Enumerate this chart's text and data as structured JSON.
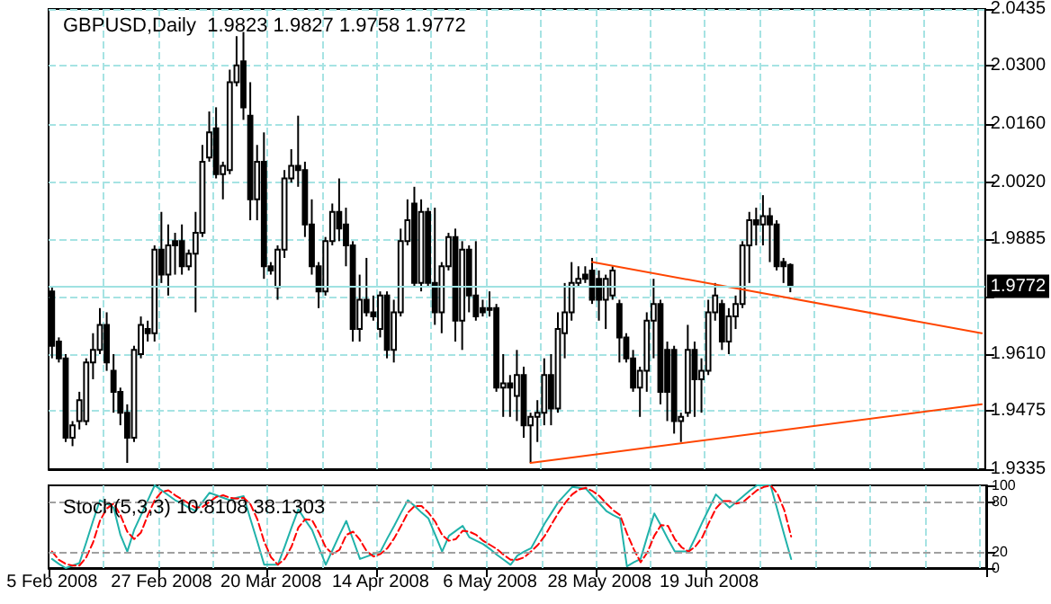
{
  "chart_data": [
    {
      "type": "candlestick",
      "title": "GBPUSD,Daily  1.9823 1.9827 1.9758 1.9772",
      "categories": [
        null,
        null,
        null,
        null,
        null,
        null,
        null,
        null,
        null,
        null,
        null,
        null,
        null,
        null,
        null,
        null,
        null,
        null,
        null,
        null,
        null,
        null,
        null,
        null,
        null,
        null,
        null,
        null,
        null,
        null,
        null,
        null,
        null,
        null,
        null,
        null,
        null,
        null,
        null,
        null,
        null,
        null,
        null,
        null,
        null,
        null,
        null,
        null,
        null,
        null,
        null,
        null,
        null,
        null,
        null,
        null,
        null,
        null,
        null,
        null,
        null,
        null,
        null,
        null,
        null,
        null,
        null,
        null,
        null,
        null,
        null,
        null,
        null,
        null,
        null,
        null,
        null,
        null,
        null,
        null,
        null,
        null,
        null,
        null,
        null,
        null,
        null,
        null,
        null,
        null,
        null,
        null,
        null,
        null,
        null,
        null,
        null,
        null,
        null,
        null,
        null,
        null,
        null,
        null,
        null,
        null,
        null,
        null,
        null,
        null,
        null,
        null,
        null,
        null,
        null,
        null,
        null,
        null,
        null,
        null,
        null,
        null,
        null,
        null,
        null,
        null,
        null,
        null,
        null,
        null,
        null,
        null,
        null,
        null,
        null,
        null,
        null
      ],
      "series": [
        {
          "color": "#000000",
          "ohlc": [
            [
              1.976,
              1.977,
              1.96,
              1.963
            ],
            [
              1.964,
              1.965,
              1.959,
              1.96
            ],
            [
              1.96,
              1.961,
              1.94,
              1.941
            ],
            [
              1.941,
              1.945,
              1.939,
              1.944
            ],
            [
              1.945,
              1.952,
              1.943,
              1.95
            ],
            [
              1.945,
              1.96,
              1.944,
              1.959
            ],
            [
              1.959,
              1.966,
              1.955,
              1.962
            ],
            [
              1.962,
              1.972,
              1.961,
              1.968
            ],
            [
              1.968,
              1.971,
              1.957,
              1.959
            ],
            [
              1.957,
              1.961,
              1.947,
              1.952
            ],
            [
              1.952,
              1.953,
              1.944,
              1.947
            ],
            [
              1.947,
              1.949,
              1.935,
              1.941
            ],
            [
              1.941,
              1.963,
              1.94,
              1.962
            ],
            [
              1.961,
              1.97,
              1.96,
              1.968
            ],
            [
              1.967,
              1.969,
              1.964,
              1.966
            ],
            [
              1.966,
              1.987,
              1.964,
              1.986
            ],
            [
              1.986,
              1.995,
              1.978,
              1.98
            ],
            [
              1.98,
              1.992,
              1.975,
              1.987
            ],
            [
              1.988,
              1.99,
              1.98,
              1.987
            ],
            [
              1.988,
              1.992,
              1.98,
              1.982
            ],
            [
              1.982,
              1.986,
              1.981,
              1.985
            ],
            [
              1.985,
              1.995,
              1.971,
              1.99
            ],
            [
              1.99,
              2.011,
              1.989,
              2.007
            ],
            [
              2.008,
              2.019,
              2.007,
              2.014
            ],
            [
              2.015,
              2.02,
              2.003,
              2.004
            ],
            [
              2.004,
              2.007,
              1.998,
              2.006
            ],
            [
              2.005,
              2.029,
              2.004,
              2.026
            ],
            [
              2.026,
              2.037,
              2.025,
              2.03
            ],
            [
              2.031,
              2.038,
              2.017,
              2.02
            ],
            [
              2.018,
              2.026,
              1.993,
              1.998
            ],
            [
              1.998,
              2.011,
              1.993,
              2.007
            ],
            [
              2.007,
              2.014,
              1.979,
              1.982
            ],
            [
              1.982,
              1.983,
              1.98,
              1.981
            ],
            [
              1.977,
              1.987,
              1.974,
              1.986
            ],
            [
              1.986,
              2.005,
              1.984,
              2.003
            ],
            [
              2.003,
              2.01,
              2.002,
              2.006
            ],
            [
              2.006,
              2.018,
              2.001,
              2.005
            ],
            [
              2.005,
              2.007,
              1.989,
              1.992
            ],
            [
              1.992,
              1.998,
              1.98,
              1.982
            ],
            [
              1.982,
              1.983,
              1.972,
              1.976
            ],
            [
              1.976,
              1.989,
              1.975,
              1.988
            ],
            [
              1.988,
              1.997,
              1.987,
              1.995
            ],
            [
              1.995,
              2.003,
              1.988,
              1.991
            ],
            [
              1.992,
              1.996,
              1.982,
              1.987
            ],
            [
              1.987,
              1.988,
              1.964,
              1.967
            ],
            [
              1.967,
              1.98,
              1.964,
              1.974
            ],
            [
              1.974,
              1.984,
              1.97,
              1.971
            ],
            [
              1.971,
              1.975,
              1.969,
              1.97
            ],
            [
              1.967,
              1.976,
              1.965,
              1.975
            ],
            [
              1.975,
              1.976,
              1.96,
              1.962
            ],
            [
              1.962,
              1.974,
              1.959,
              1.971
            ],
            [
              1.971,
              1.991,
              1.97,
              1.988
            ],
            [
              1.988,
              1.998,
              1.987,
              1.993
            ],
            [
              1.997,
              2.001,
              1.977,
              1.978
            ],
            [
              1.978,
              1.998,
              1.976,
              1.995
            ],
            [
              1.995,
              1.996,
              1.977,
              1.978
            ],
            [
              1.978,
              1.996,
              1.968,
              1.971
            ],
            [
              1.971,
              1.983,
              1.966,
              1.982
            ],
            [
              1.982,
              1.99,
              1.981,
              1.989
            ],
            [
              1.989,
              1.991,
              1.964,
              1.969
            ],
            [
              1.969,
              1.988,
              1.962,
              1.986
            ],
            [
              1.986,
              1.987,
              1.971,
              1.975
            ],
            [
              1.975,
              1.988,
              1.969,
              1.97
            ],
            [
              1.972,
              1.974,
              1.97,
              1.971
            ],
            [
              1.972,
              1.976,
              1.97,
              1.972
            ],
            [
              1.972,
              1.973,
              1.952,
              1.953
            ],
            [
              1.953,
              1.961,
              1.946,
              1.954
            ],
            [
              1.954,
              1.956,
              1.946,
              1.953
            ],
            [
              1.951,
              1.962,
              1.945,
              1.956
            ],
            [
              1.956,
              1.958,
              1.941,
              1.944
            ],
            [
              1.944,
              1.947,
              1.935,
              1.946
            ],
            [
              1.946,
              1.95,
              1.94,
              1.947
            ],
            [
              1.947,
              1.96,
              1.944,
              1.956
            ],
            [
              1.956,
              1.961,
              1.944,
              1.948
            ],
            [
              1.948,
              1.971,
              1.947,
              1.967
            ],
            [
              1.966,
              1.978,
              1.96,
              1.971
            ],
            [
              1.971,
              1.983,
              1.969,
              1.978
            ],
            [
              1.978,
              1.982,
              1.977,
              1.979
            ],
            [
              1.98,
              1.982,
              1.978,
              1.979
            ],
            [
              1.981,
              1.984,
              1.973,
              1.974
            ],
            [
              1.979,
              1.981,
              1.969,
              1.974
            ],
            [
              1.974,
              1.98,
              1.967,
              1.979
            ],
            [
              1.975,
              1.982,
              1.974,
              1.981
            ],
            [
              1.973,
              1.974,
              1.959,
              1.965
            ],
            [
              1.965,
              1.966,
              1.959,
              1.96
            ],
            [
              1.96,
              1.962,
              1.952,
              1.953
            ],
            [
              1.953,
              1.958,
              1.946,
              1.957
            ],
            [
              1.957,
              1.971,
              1.952,
              1.969
            ],
            [
              1.969,
              1.979,
              1.96,
              1.973
            ],
            [
              1.973,
              1.974,
              1.949,
              1.952
            ],
            [
              1.962,
              1.964,
              1.945,
              1.952
            ],
            [
              1.962,
              1.963,
              1.942,
              1.945
            ],
            [
              1.945,
              1.947,
              1.94,
              1.946
            ],
            [
              1.947,
              1.968,
              1.946,
              1.962
            ],
            [
              1.962,
              1.964,
              1.946,
              1.955
            ],
            [
              1.955,
              1.96,
              1.947,
              1.957
            ],
            [
              1.957,
              1.974,
              1.956,
              1.971
            ],
            [
              1.971,
              1.978,
              1.969,
              1.975
            ],
            [
              1.973,
              1.974,
              1.962,
              1.964
            ],
            [
              1.964,
              1.972,
              1.961,
              1.97
            ],
            [
              1.97,
              1.975,
              1.967,
              1.973
            ],
            [
              1.973,
              1.988,
              1.972,
              1.987
            ],
            [
              1.987,
              1.995,
              1.978,
              1.993
            ],
            [
              1.993,
              1.996,
              1.987,
              1.992
            ],
            [
              1.992,
              1.999,
              1.987,
              1.994
            ],
            [
              1.994,
              1.996,
              1.983,
              1.992
            ],
            [
              1.992,
              1.993,
              1.981,
              1.982
            ],
            [
              1.983,
              1.984,
              1.978,
              1.982
            ],
            [
              1.9823,
              1.9827,
              1.9758,
              1.9772
            ],
            null,
            null,
            null,
            null,
            null,
            null,
            null,
            null,
            null,
            null,
            null,
            null,
            null,
            null,
            null,
            null,
            null,
            null,
            null,
            null,
            null,
            null,
            null,
            null,
            null,
            null,
            null,
            null
          ]
        },
        {
          "type": "line",
          "color": "#ff4500",
          "values": [
            null,
            null,
            null,
            null,
            null,
            null,
            null,
            null,
            null,
            null,
            null,
            null,
            null,
            null,
            null,
            null,
            null,
            null,
            null,
            null,
            null,
            null,
            null,
            null,
            null,
            null,
            null,
            null,
            null,
            null,
            null,
            null,
            null,
            null,
            null,
            null,
            null,
            null,
            null,
            null,
            null,
            null,
            null,
            null,
            null,
            null,
            null,
            null,
            null,
            null,
            null,
            null,
            null,
            null,
            null,
            null,
            null,
            null,
            null,
            null,
            null,
            null,
            null,
            null,
            null,
            null,
            null,
            null,
            null,
            null,
            null,
            null,
            null,
            null,
            null,
            null,
            null,
            null,
            null,
            1.983,
            null,
            null,
            null,
            null,
            null,
            null,
            null,
            null,
            null,
            null,
            null,
            null,
            null,
            null,
            null,
            null,
            null,
            null,
            null,
            null,
            null,
            null,
            null,
            null,
            null,
            null,
            null,
            null,
            null,
            null,
            null,
            null,
            null,
            null,
            null,
            null,
            null,
            null,
            null,
            null,
            null,
            null,
            null,
            null,
            null,
            null,
            null,
            null,
            null,
            null,
            null,
            null,
            null,
            null,
            null,
            null,
            1.966
          ]
        },
        {
          "type": "line",
          "color": "#ff4500",
          "values": [
            null,
            null,
            null,
            null,
            null,
            null,
            null,
            null,
            null,
            null,
            null,
            null,
            null,
            null,
            null,
            null,
            null,
            null,
            null,
            null,
            null,
            null,
            null,
            null,
            null,
            null,
            null,
            null,
            null,
            null,
            null,
            null,
            null,
            null,
            null,
            null,
            null,
            null,
            null,
            null,
            null,
            null,
            null,
            null,
            null,
            null,
            null,
            null,
            null,
            null,
            null,
            null,
            null,
            null,
            null,
            null,
            null,
            null,
            null,
            null,
            null,
            null,
            null,
            null,
            null,
            null,
            null,
            null,
            null,
            null,
            1.935,
            null,
            null,
            null,
            null,
            null,
            null,
            null,
            null,
            null,
            null,
            null,
            null,
            null,
            null,
            null,
            null,
            null,
            null,
            null,
            null,
            null,
            null,
            null,
            null,
            null,
            null,
            null,
            null,
            null,
            null,
            null,
            null,
            null,
            null,
            null,
            null,
            null,
            null,
            null,
            null,
            null,
            null,
            null,
            null,
            null,
            null,
            null,
            null,
            null,
            null,
            null,
            null,
            null,
            null,
            null,
            null,
            null,
            null,
            null,
            null,
            null,
            null,
            null,
            null,
            null,
            1.949
          ]
        }
      ],
      "ylim": [
        1.9335,
        2.0435
      ],
      "yticks": [
        1.9335,
        1.9475,
        {
          "value": 1.961,
          "label": "1.9610"
        },
        {
          "value": 1.9745,
          "label": null
        },
        1.9885,
        {
          "value": 2.002,
          "label": "2.0020"
        },
        {
          "value": 2.016,
          "label": "2.0160"
        },
        {
          "value": 2.03,
          "label": "2.0300"
        },
        2.0435
      ],
      "grid": true,
      "tick_labels": "y",
      "ref_lines": [
        {
          "axis": "y",
          "value": 1.9772,
          "label": "1.9772",
          "color": "#9fe2e2"
        }
      ]
    },
    {
      "type": "line",
      "title": "Stoch(5,3,3) 10.8108 38.1303",
      "categories": [
        "5 Feb 2008",
        null,
        null,
        null,
        null,
        null,
        null,
        null,
        null,
        null,
        null,
        null,
        null,
        null,
        null,
        null,
        "27 Feb 2008",
        null,
        null,
        null,
        null,
        null,
        null,
        null,
        null,
        null,
        null,
        null,
        null,
        null,
        null,
        null,
        "20 Mar 2008",
        null,
        null,
        null,
        null,
        null,
        null,
        null,
        null,
        null,
        null,
        null,
        null,
        null,
        null,
        null,
        "14 Apr 2008",
        null,
        null,
        null,
        null,
        null,
        null,
        null,
        null,
        null,
        null,
        null,
        null,
        null,
        null,
        null,
        "6 May 2008",
        null,
        null,
        null,
        null,
        null,
        null,
        null,
        null,
        null,
        null,
        null,
        null,
        null,
        null,
        null,
        "28 May 2008",
        null,
        null,
        null,
        null,
        null,
        null,
        null,
        null,
        null,
        null,
        null,
        null,
        null,
        null,
        null,
        "19 Jun 2008",
        null,
        null,
        null,
        null,
        null,
        null,
        null,
        null,
        null,
        null,
        null,
        null,
        null,
        null,
        null,
        null,
        null,
        null,
        null,
        null,
        null,
        null,
        null,
        null,
        null,
        null,
        null,
        null,
        null,
        null,
        null,
        null,
        null,
        null,
        null,
        null,
        null,
        null,
        null,
        null
      ],
      "series": [
        {
          "color": "#20b2aa",
          "values": [
            11,
            5,
            0,
            3,
            6,
            31,
            57,
            82,
            78,
            73,
            40,
            20,
            46,
            64,
            82,
            100,
            94,
            88,
            82,
            78,
            73,
            69,
            80,
            91,
            88,
            85,
            82,
            85,
            87,
            59,
            32,
            4,
            4,
            4,
            26,
            49,
            71,
            58,
            46,
            25,
            4,
            22,
            40,
            57,
            34,
            11,
            14,
            17,
            20,
            36,
            51,
            67,
            82,
            75,
            67,
            60,
            40,
            20,
            39,
            45,
            51,
            37,
            33,
            29,
            23,
            16,
            10,
            4,
            15,
            20,
            24,
            39,
            54,
            67,
            80,
            89,
            98,
            97,
            96,
            87,
            78,
            69,
            64,
            60,
            2,
            7,
            11,
            39,
            66,
            51,
            35,
            20,
            20,
            20,
            37,
            55,
            72,
            89,
            81,
            73,
            80,
            87,
            94,
            100,
            100,
            100,
            70,
            40,
            10.8108,
            null,
            null,
            null,
            null,
            null,
            null,
            null,
            null,
            null,
            null,
            null,
            null,
            null,
            null,
            null,
            null,
            null,
            null,
            null,
            null,
            null,
            null,
            null,
            null,
            null,
            null,
            null,
            null
          ]
        },
        {
          "color": "#ff0000",
          "line_style": "dashed",
          "values": [
            20,
            10,
            5,
            3,
            3,
            13,
            31,
            57,
            72,
            78,
            64,
            44,
            35,
            43,
            64,
            82,
            92,
            94,
            88,
            83,
            78,
            73,
            74,
            80,
            86,
            88,
            85,
            84,
            85,
            77,
            59,
            32,
            13,
            4,
            11,
            26,
            49,
            59,
            58,
            43,
            25,
            17,
            22,
            40,
            44,
            34,
            20,
            14,
            17,
            24,
            36,
            51,
            67,
            75,
            75,
            67,
            56,
            40,
            33,
            35,
            45,
            44,
            40,
            33,
            28,
            23,
            16,
            10,
            10,
            13,
            20,
            28,
            39,
            53,
            67,
            79,
            89,
            95,
            97,
            93,
            87,
            78,
            70,
            64,
            42,
            23,
            7,
            19,
            39,
            52,
            51,
            35,
            25,
            20,
            26,
            37,
            55,
            72,
            81,
            81,
            78,
            80,
            87,
            94,
            98,
            100,
            90,
            70,
            38.1303,
            null,
            null,
            null,
            null,
            null,
            null,
            null,
            null,
            null,
            null,
            null,
            null,
            null,
            null,
            null,
            null,
            null,
            null,
            null,
            null,
            null,
            null,
            null,
            null,
            null,
            null,
            null,
            null
          ]
        }
      ],
      "ylim": [
        0,
        100
      ],
      "yticks": [
        0,
        20,
        80,
        100
      ],
      "grid": "x",
      "marker": "none",
      "ref_lines": [
        {
          "axis": "y",
          "value": 20,
          "color": "#a0a0a0",
          "line_style": "dashed"
        },
        {
          "axis": "y",
          "value": 80,
          "color": "#a0a0a0",
          "line_style": "dashed"
        }
      ]
    }
  ]
}
